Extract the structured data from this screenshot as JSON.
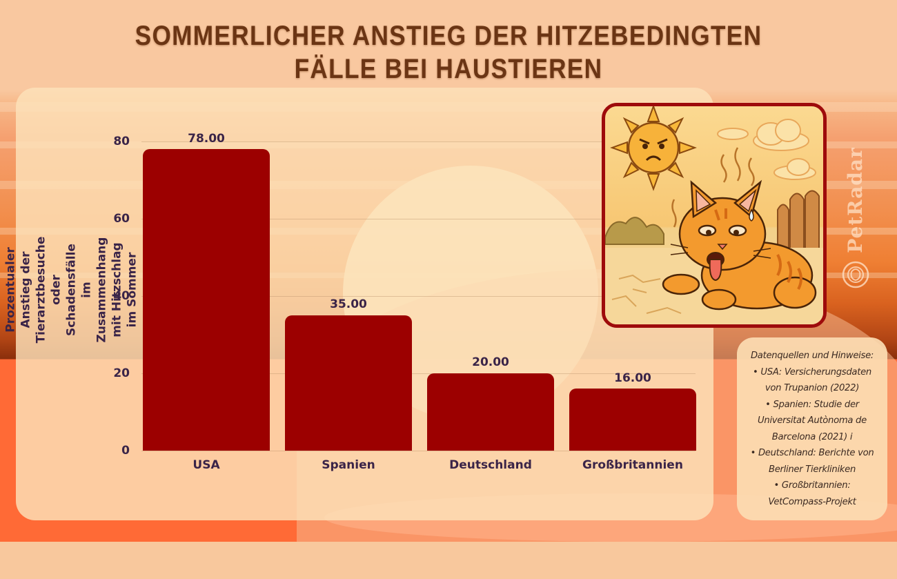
{
  "title": {
    "line1": "SOMMERLICHER ANSTIEG DER HITZEBEDINGTEN",
    "line2": "FÄLLE BEI HAUSTIEREN"
  },
  "colors": {
    "bar": "#9c0000",
    "title": "#6b3514",
    "text": "#3a2448",
    "illustration_border": "#9e0b0b"
  },
  "chart_data": {
    "type": "bar",
    "title": "Sommerlicher Anstieg der hitzebedingten Fälle bei Haustieren",
    "categories": [
      "USA",
      "Spanien",
      "Deutschland",
      "Großbritannien"
    ],
    "values": [
      78.0,
      35.0,
      20.0,
      16.0
    ],
    "value_labels": [
      "78.00",
      "35.00",
      "20.00",
      "16.00"
    ],
    "xlabel": "",
    "ylabel": "Prozentualer Anstieg der Tierarztbesuche oder Schadensfälle im Zusammenhang mit Hitzschlag im Sommer",
    "ylim": [
      0,
      80
    ],
    "yticks": [
      "0",
      "20",
      "40",
      "60",
      "80"
    ],
    "grid": true,
    "legend": null
  },
  "illustration": {
    "description": "overheated-cat-under-angry-sun"
  },
  "sources": {
    "lines": [
      "Datenquellen und Hinweise:",
      "• USA: Versicherungsdaten",
      "von Trupanion (2022)",
      "• Spanien: Studie der",
      "Universitat Autònoma de",
      "Barcelona (2021) i",
      "• Deutschland: Berichte von",
      "Berliner Tierkliniken",
      "• Großbritannien:",
      "VetCompass-Projekt"
    ]
  },
  "watermark": {
    "brand": "PetRadar",
    "icon": "pet-radar-logo-icon"
  }
}
